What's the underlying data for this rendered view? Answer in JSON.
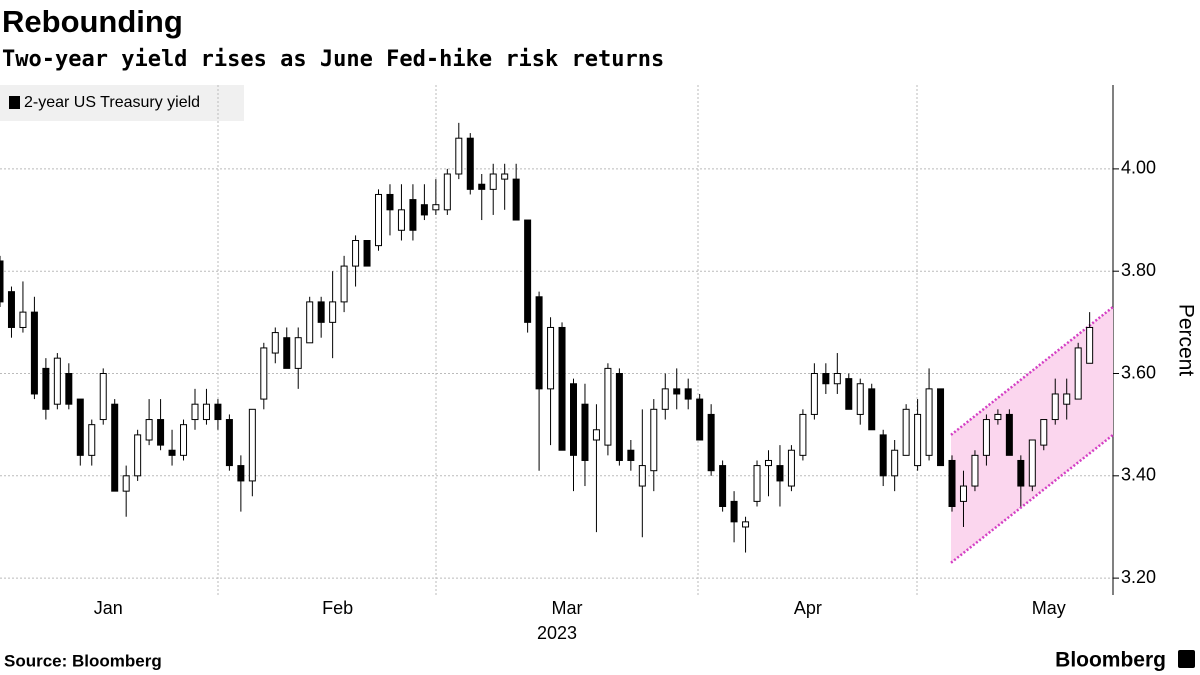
{
  "chart_data": {
    "type": "candlestick",
    "title": "Rebounding",
    "subtitle": "Two-year yield rises as June Fed-hike risk returns",
    "legend": "2-year US Treasury yield",
    "ylabel": "Percent",
    "xlabel": "2023",
    "source": "Source: Bloomberg",
    "brand": "Bloomberg",
    "ylim": [
      3.167,
      4.164
    ],
    "yticks": [
      {
        "value": 3.2,
        "label": "3.20"
      },
      {
        "value": 3.4,
        "label": "3.40"
      },
      {
        "value": 3.6,
        "label": "3.60"
      },
      {
        "value": 3.8,
        "label": "3.80"
      },
      {
        "value": 4,
        "label": "4.00"
      }
    ],
    "grid": true,
    "up_color": "#ffffff",
    "down_color": "#000000",
    "categories": [
      null,
      null,
      null,
      null,
      null,
      null,
      null,
      null,
      null,
      "Jan",
      null,
      null,
      null,
      null,
      null,
      null,
      null,
      null,
      null,
      null,
      null,
      null,
      null,
      null,
      null,
      null,
      null,
      null,
      null,
      "Feb",
      null,
      null,
      null,
      null,
      null,
      null,
      null,
      null,
      null,
      null,
      null,
      null,
      null,
      null,
      null,
      null,
      null,
      null,
      null,
      "Mar",
      null,
      null,
      null,
      null,
      null,
      null,
      null,
      null,
      null,
      null,
      null,
      null,
      null,
      null,
      null,
      null,
      null,
      null,
      null,
      null,
      "Apr",
      null,
      null,
      null,
      null,
      null,
      null,
      null,
      null,
      null,
      null,
      null,
      null,
      null,
      null,
      null,
      null,
      null,
      null,
      null,
      null,
      "May",
      null,
      null,
      null,
      null
    ],
    "open": [
      3.82,
      3.76,
      3.69,
      3.72,
      3.61,
      3.54,
      3.6,
      3.55,
      3.44,
      3.51,
      3.54,
      3.37,
      3.4,
      3.47,
      3.51,
      3.45,
      3.44,
      3.51,
      3.51,
      3.54,
      3.51,
      3.42,
      3.39,
      3.55,
      3.64,
      3.67,
      3.61,
      3.66,
      3.74,
      3.7,
      3.74,
      3.81,
      3.86,
      3.85,
      3.95,
      3.88,
      3.94,
      3.93,
      3.92,
      3.92,
      3.99,
      4.06,
      3.97,
      3.96,
      3.98,
      3.98,
      3.9,
      3.75,
      3.57,
      3.69,
      3.58,
      3.54,
      3.47,
      3.46,
      3.6,
      3.45,
      3.38,
      3.41,
      3.53,
      3.57,
      3.57,
      3.55,
      3.52,
      3.42,
      3.35,
      3.3,
      3.35,
      3.42,
      3.42,
      3.38,
      3.44,
      3.52,
      3.6,
      3.58,
      3.59,
      3.52,
      3.57,
      3.48,
      3.4,
      3.44,
      3.42,
      3.44,
      3.57,
      3.43,
      3.35,
      3.38,
      3.44,
      3.51,
      3.52,
      3.43,
      3.38,
      3.46,
      3.51,
      3.54,
      3.55,
      3.62
    ],
    "high": [
      3.83,
      3.77,
      3.78,
      3.75,
      3.63,
      3.64,
      3.62,
      3.55,
      3.51,
      3.61,
      3.55,
      3.42,
      3.49,
      3.55,
      3.55,
      3.49,
      3.51,
      3.57,
      3.57,
      3.55,
      3.52,
      3.44,
      3.53,
      3.66,
      3.69,
      3.69,
      3.69,
      3.75,
      3.75,
      3.8,
      3.83,
      3.87,
      3.86,
      3.96,
      3.97,
      3.97,
      3.97,
      3.97,
      3.98,
      4.0,
      4.09,
      4.07,
      3.99,
      4.01,
      4.01,
      4.01,
      3.9,
      3.76,
      3.71,
      3.7,
      3.59,
      3.58,
      3.54,
      3.62,
      3.61,
      3.47,
      3.53,
      3.55,
      3.6,
      3.61,
      3.59,
      3.56,
      3.54,
      3.43,
      3.37,
      3.32,
      3.43,
      3.45,
      3.46,
      3.46,
      3.53,
      3.62,
      3.62,
      3.64,
      3.6,
      3.59,
      3.58,
      3.49,
      3.47,
      3.54,
      3.55,
      3.61,
      3.57,
      3.44,
      3.41,
      3.45,
      3.52,
      3.53,
      3.53,
      3.44,
      3.47,
      3.51,
      3.59,
      3.59,
      3.66,
      3.72
    ],
    "low": [
      3.73,
      3.67,
      3.68,
      3.55,
      3.51,
      3.53,
      3.53,
      3.42,
      3.42,
      3.5,
      3.37,
      3.32,
      3.39,
      3.46,
      3.45,
      3.42,
      3.43,
      3.49,
      3.5,
      3.49,
      3.41,
      3.33,
      3.36,
      3.53,
      3.62,
      3.61,
      3.57,
      3.66,
      3.67,
      3.63,
      3.72,
      3.77,
      3.81,
      3.84,
      3.87,
      3.86,
      3.86,
      3.9,
      3.91,
      3.91,
      3.98,
      3.95,
      3.9,
      3.91,
      3.92,
      3.9,
      3.68,
      3.41,
      3.46,
      3.45,
      3.37,
      3.38,
      3.29,
      3.44,
      3.42,
      3.41,
      3.28,
      3.37,
      3.51,
      3.53,
      3.53,
      3.47,
      3.4,
      3.33,
      3.27,
      3.25,
      3.34,
      3.36,
      3.34,
      3.37,
      3.43,
      3.51,
      3.56,
      3.56,
      3.53,
      3.5,
      3.49,
      3.38,
      3.37,
      3.44,
      3.41,
      3.43,
      3.42,
      3.33,
      3.3,
      3.37,
      3.42,
      3.5,
      3.44,
      3.34,
      3.37,
      3.45,
      3.5,
      3.51,
      3.55,
      3.62
    ],
    "close": [
      3.74,
      3.69,
      3.72,
      3.56,
      3.53,
      3.63,
      3.54,
      3.44,
      3.5,
      3.6,
      3.37,
      3.4,
      3.48,
      3.51,
      3.46,
      3.44,
      3.5,
      3.54,
      3.54,
      3.51,
      3.42,
      3.39,
      3.53,
      3.65,
      3.68,
      3.61,
      3.67,
      3.74,
      3.7,
      3.74,
      3.81,
      3.86,
      3.81,
      3.95,
      3.92,
      3.92,
      3.88,
      3.91,
      3.93,
      3.99,
      4.06,
      3.96,
      3.96,
      3.99,
      3.99,
      3.9,
      3.7,
      3.57,
      3.69,
      3.45,
      3.44,
      3.43,
      3.49,
      3.61,
      3.43,
      3.43,
      3.42,
      3.53,
      3.57,
      3.56,
      3.55,
      3.47,
      3.41,
      3.34,
      3.31,
      3.31,
      3.42,
      3.43,
      3.39,
      3.45,
      3.52,
      3.6,
      3.58,
      3.6,
      3.53,
      3.58,
      3.49,
      3.4,
      3.45,
      3.53,
      3.52,
      3.57,
      3.42,
      3.34,
      3.38,
      3.44,
      3.51,
      3.52,
      3.44,
      3.38,
      3.47,
      3.51,
      3.56,
      3.56,
      3.65,
      3.69
    ],
    "channel": {
      "upper": [
        3.48,
        3.73
      ],
      "lower": [
        3.23,
        3.48
      ],
      "color": "#d43fc4",
      "fill": "#fbd6ee"
    }
  }
}
